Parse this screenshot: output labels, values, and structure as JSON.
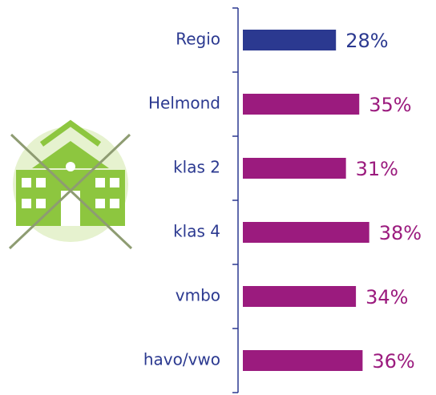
{
  "chart_data": {
    "type": "bar",
    "orientation": "horizontal",
    "categories": [
      "Regio",
      "Helmond",
      "klas 2",
      "klas 4",
      "vmbo",
      "havo/vwo"
    ],
    "values": [
      28,
      35,
      31,
      38,
      34,
      36
    ],
    "value_labels": [
      "28%",
      "35%",
      "31%",
      "38%",
      "34%",
      "36%"
    ],
    "colors": [
      "#2b3990",
      "#9b1b7e",
      "#9b1b7e",
      "#9b1b7e",
      "#9b1b7e",
      "#9b1b7e"
    ],
    "label_color": "#2b3990"
  }
}
